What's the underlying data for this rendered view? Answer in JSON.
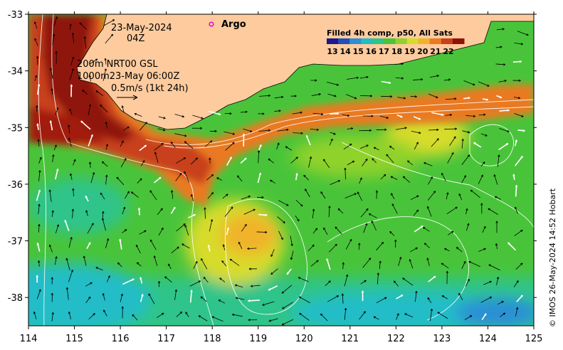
{
  "map": {
    "lon_ticks": [
      "114",
      "115",
      "116",
      "117",
      "118",
      "119",
      "120",
      "121",
      "122",
      "123",
      "124",
      "125"
    ],
    "lat_ticks": [
      "-33",
      "-34",
      "-35",
      "-36",
      "-37",
      "-38"
    ],
    "lon_range": [
      114,
      125
    ],
    "lat_range": [
      -38.5,
      -33.0
    ]
  },
  "annotations": {
    "date": "23-May-2024",
    "time": "04Z",
    "contours_line1": "200m  NRT00 GSL",
    "contours_line2": "1000m23-May 06:00Z",
    "vector_scale": "0.5m/s (1kt 24h)",
    "argo_label": "Argo"
  },
  "colorbar": {
    "title": "Filled 4h comp, p50, All Sats",
    "labels": [
      "13",
      "14",
      "15",
      "16",
      "17",
      "18",
      "19",
      "20",
      "21",
      "22"
    ],
    "colors": [
      "#1a1a8c",
      "#1f4fb8",
      "#2a8fd6",
      "#21bdc7",
      "#2ec48a",
      "#49c43a",
      "#8fd22b",
      "#d7dc2a",
      "#f0b32c",
      "#e97a22",
      "#c8401a",
      "#8f1208"
    ]
  },
  "credit": "© IMOS 26-May-2024 14:52 Hobart",
  "colors": {
    "land": "#fdcb9e",
    "argo": "#e000e0"
  }
}
